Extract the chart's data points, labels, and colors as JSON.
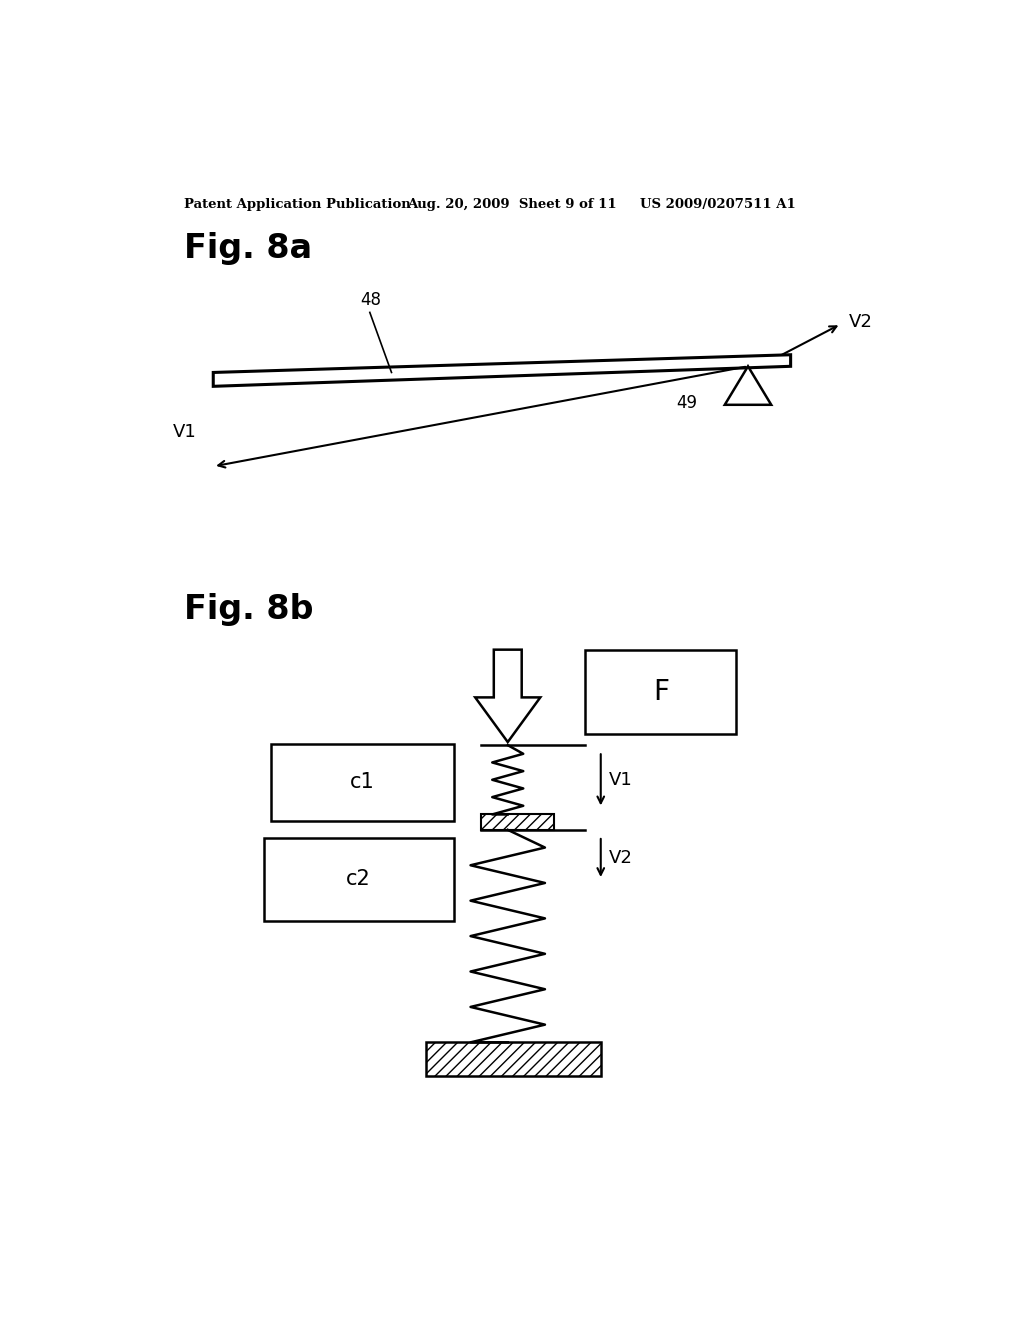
{
  "header_left": "Patent Application Publication",
  "header_mid": "Aug. 20, 2009  Sheet 9 of 11",
  "header_right": "US 2009/0207511 A1",
  "fig8a_label": "Fig. 8a",
  "fig8b_label": "Fig. 8b",
  "label_48": "48",
  "label_49": "49",
  "label_V1_8a": "V1",
  "label_V2_8a": "V2",
  "label_V1_8b": "V1",
  "label_V2_8b": "V2",
  "label_F": "F",
  "label_c1": "c1",
  "label_c2": "c2",
  "bg_color": "#ffffff",
  "line_color": "#000000"
}
